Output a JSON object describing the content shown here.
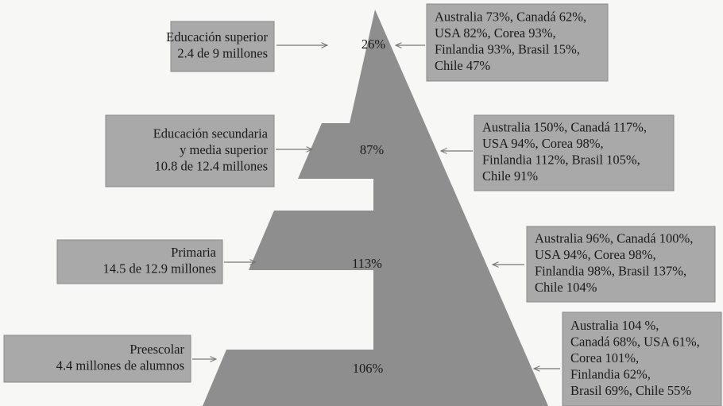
{
  "levels": [
    {
      "label": [
        "Educación superior",
        "2.4 de 9 millones"
      ],
      "percent": "26%",
      "comparison": [
        "Australia 73%, Canadá 62%,",
        "USA 82%, Corea 93%,",
        "Finlandia 93%, Brasil 15%,",
        "Chile 47%"
      ]
    },
    {
      "label": [
        "Educación secundaria",
        "y media superior",
        "10.8 de 12.4 millones"
      ],
      "percent": "87%",
      "comparison": [
        "Australia 150%, Canadá 117%,",
        "USA 94%, Corea 98%,",
        "Finlandia 112%, Brasil 105%,",
        "Chile 91%"
      ]
    },
    {
      "label": [
        "Primaria",
        "14.5 de 12.9 millones"
      ],
      "percent": "113%",
      "comparison": [
        "Australia 96%, Canadá 100%,",
        "USA 94%, Corea 98%,",
        "Finlandia 98%, Brasil 137%,",
        "Chile 104%"
      ]
    },
    {
      "label": [
        "Preescolar",
        "4.4 millones de alumnos"
      ],
      "percent": "106%",
      "comparison": [
        "Australia 104 %,",
        "Canadá 68%, USA 61%,",
        "Corea 101%,",
        "Finlandia 62%,",
        "Brasil 69%, Chile 55%"
      ]
    }
  ]
}
